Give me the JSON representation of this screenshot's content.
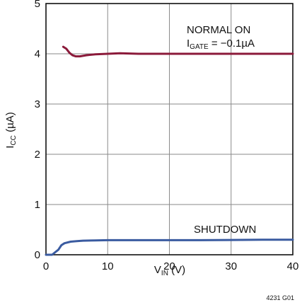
{
  "chart_data": {
    "type": "line",
    "xlabel": {
      "main": "V",
      "sub": "IN",
      "unit": " (V)"
    },
    "ylabel": {
      "main": "I",
      "sub": "CC",
      "unit": " (µA)"
    },
    "xlim": [
      0,
      40
    ],
    "ylim": [
      0,
      5
    ],
    "xticks": [
      "0",
      "10",
      "20",
      "30",
      "40"
    ],
    "yticks": [
      "0",
      "1",
      "2",
      "3",
      "4",
      "5"
    ],
    "grid": true,
    "figure_id": "4231 G01",
    "annotations": {
      "normal_on": "NORMAL ON",
      "igate_main": "I",
      "igate_sub": "GATE",
      "igate_value": " = −0.1µA",
      "shutdown": "SHUTDOWN"
    },
    "series": [
      {
        "name": "NORMAL ON",
        "color": "#8b1a3a",
        "x": [
          2.8,
          3.3,
          3.8,
          4.3,
          4.8,
          5.5,
          6.5,
          8,
          10,
          12,
          15,
          20,
          25,
          30,
          35,
          40
        ],
        "y": [
          4.14,
          4.1,
          4.02,
          3.97,
          3.95,
          3.95,
          3.97,
          3.99,
          4.0,
          4.01,
          4.0,
          4.0,
          4.0,
          4.0,
          4.0,
          4.0
        ]
      },
      {
        "name": "SHUTDOWN",
        "color": "#3a5ba0",
        "x": [
          0,
          1,
          1.5,
          2,
          2.5,
          3,
          4,
          5,
          6,
          8,
          10,
          15,
          20,
          25,
          30,
          35,
          40
        ],
        "y": [
          0.0,
          0.0,
          0.05,
          0.1,
          0.19,
          0.23,
          0.26,
          0.27,
          0.28,
          0.285,
          0.29,
          0.29,
          0.29,
          0.29,
          0.295,
          0.3,
          0.3
        ]
      }
    ]
  }
}
